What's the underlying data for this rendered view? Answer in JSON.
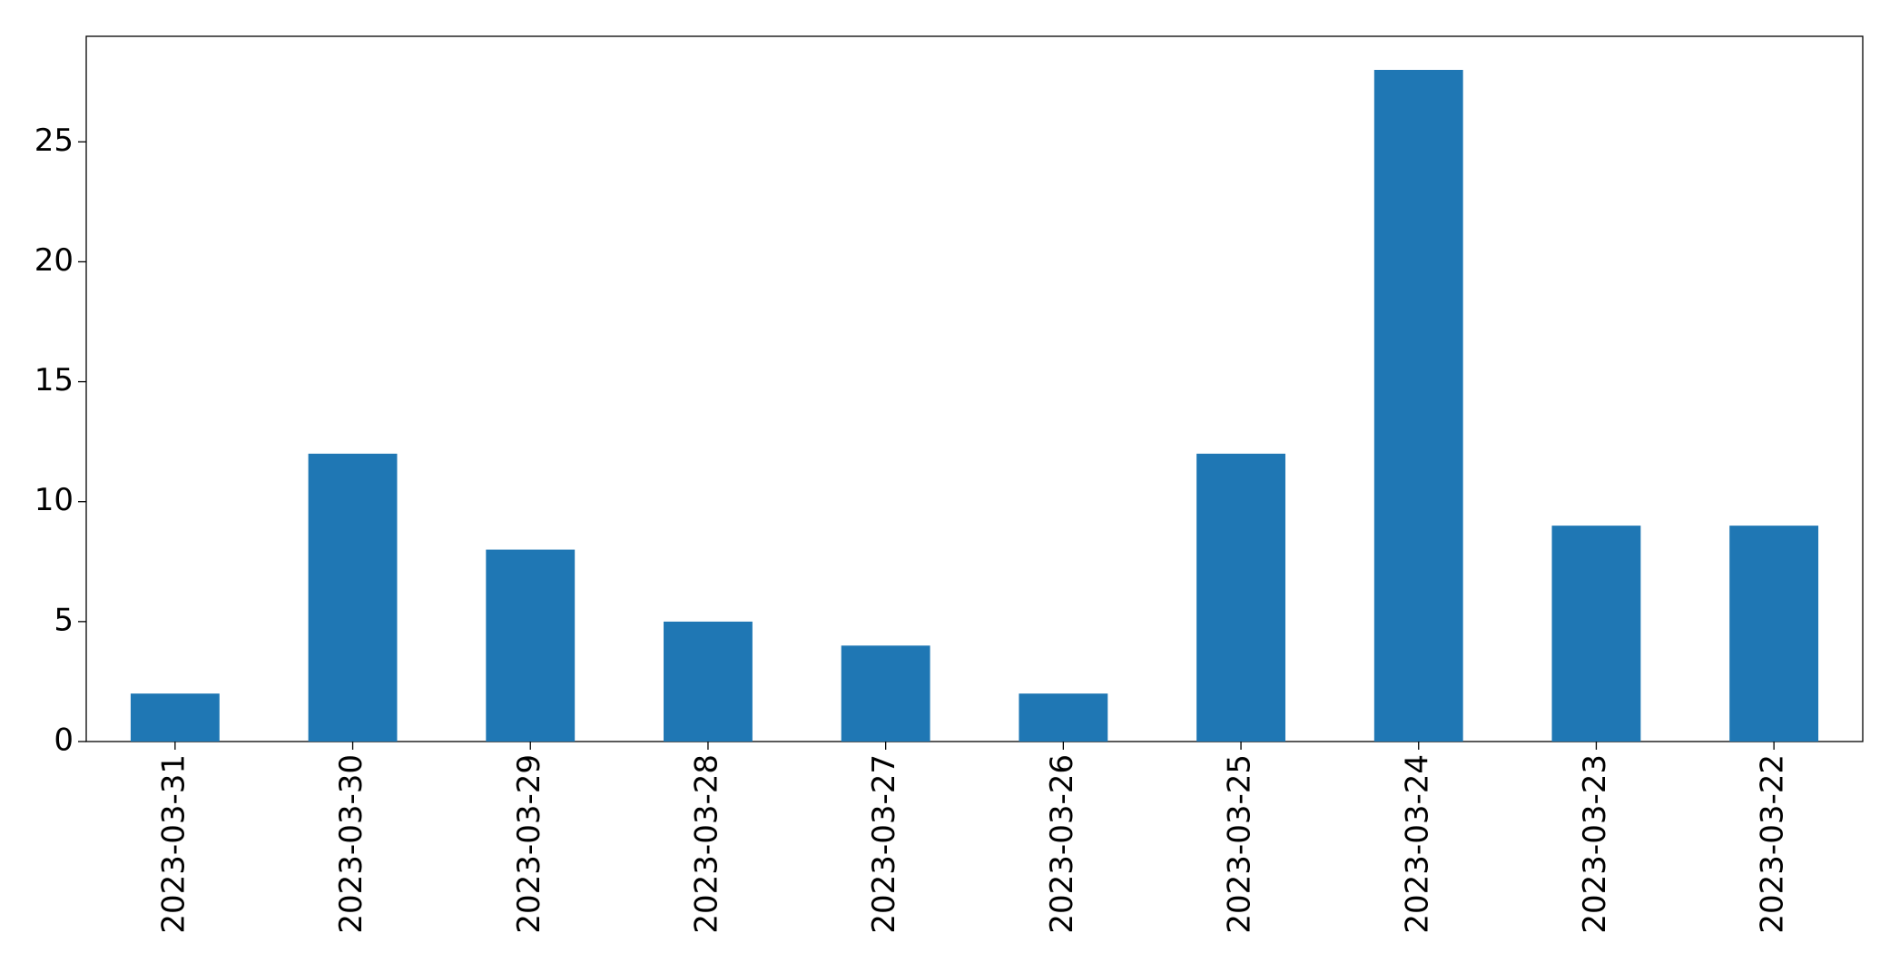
{
  "chart_data": {
    "type": "bar",
    "categories": [
      "2023-03-31",
      "2023-03-30",
      "2023-03-29",
      "2023-03-28",
      "2023-03-27",
      "2023-03-26",
      "2023-03-25",
      "2023-03-24",
      "2023-03-23",
      "2023-03-22"
    ],
    "values": [
      2,
      12,
      8,
      5,
      4,
      2,
      12,
      28,
      9,
      9
    ],
    "color": "#1f77b4",
    "ylim": [
      0,
      29.4
    ],
    "yticks": [
      0,
      5,
      10,
      15,
      20,
      25
    ],
    "grid": false
  }
}
